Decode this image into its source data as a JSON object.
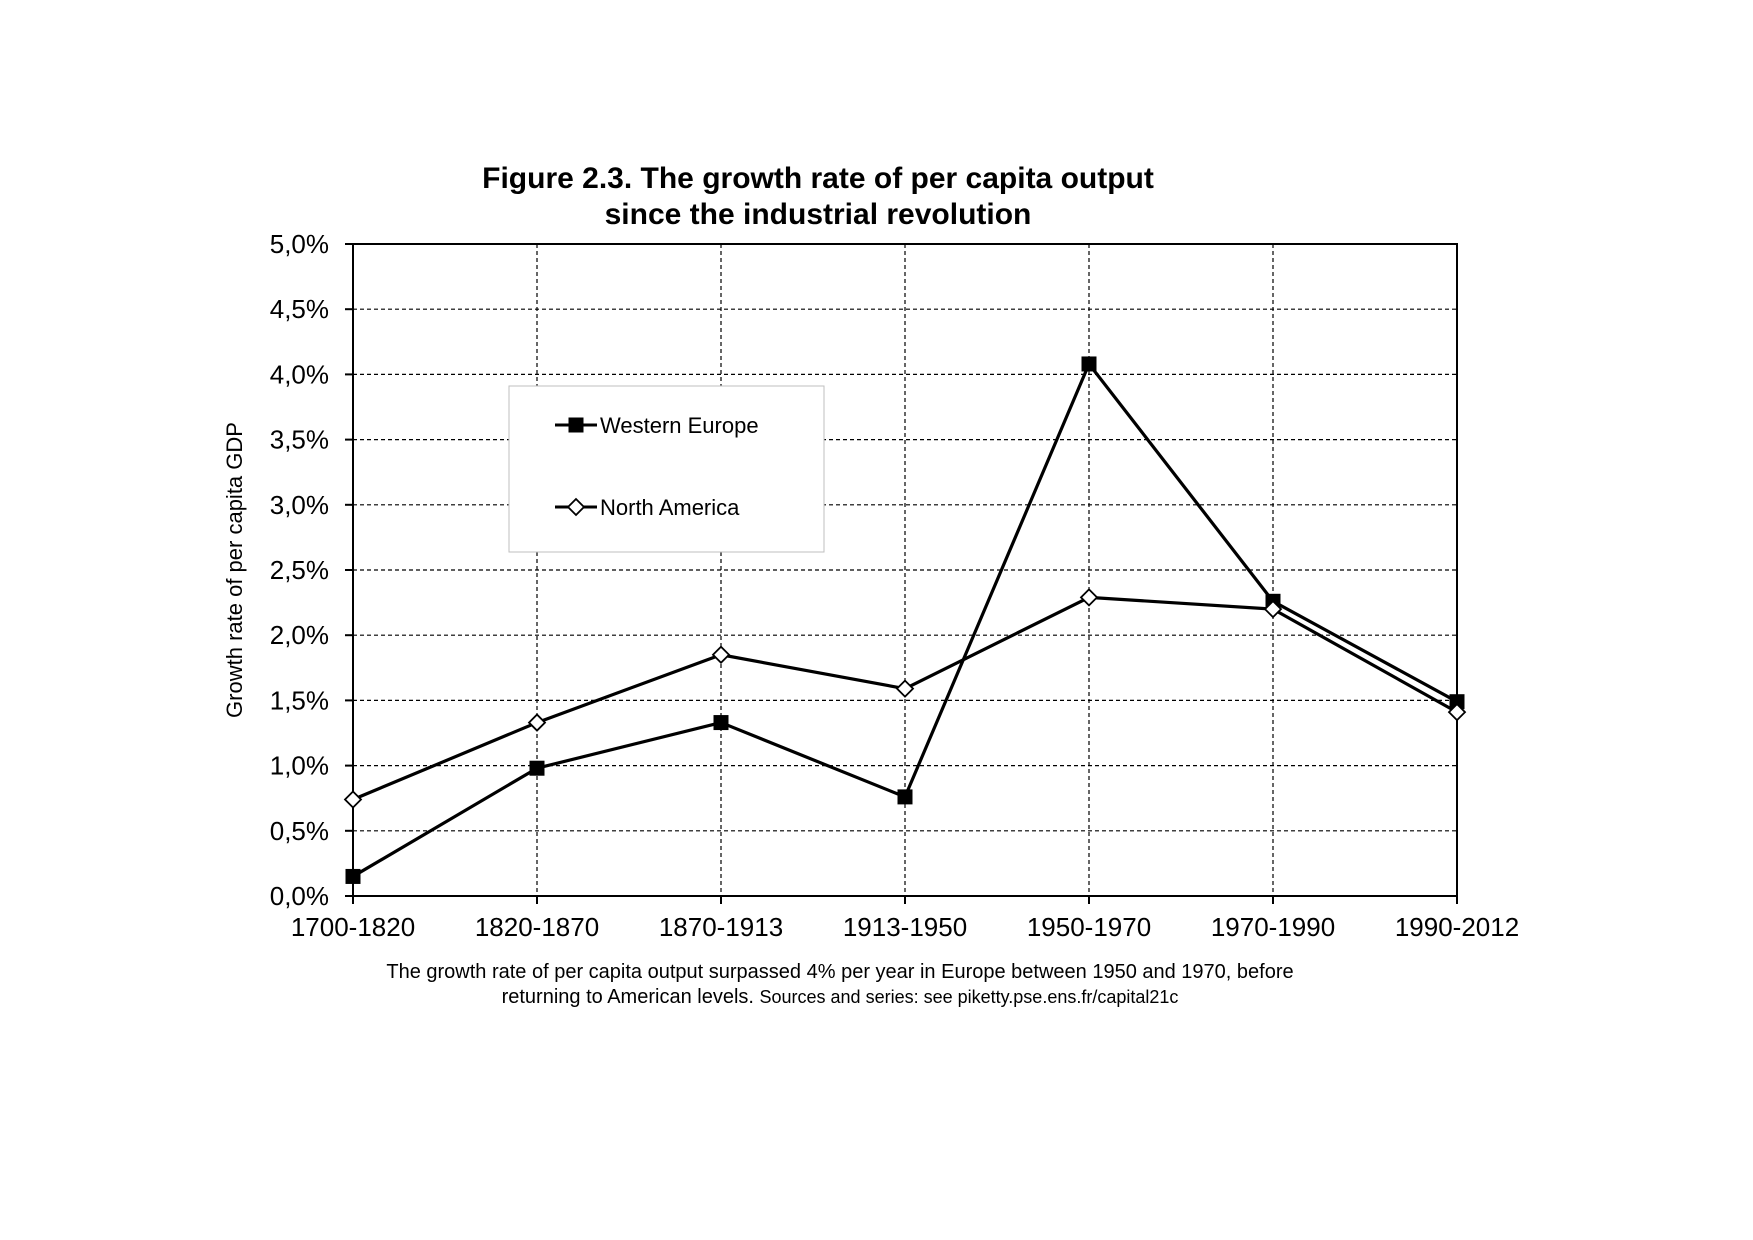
{
  "chart_data": {
    "type": "line",
    "title": [
      "Figure 2.3. The growth rate of per capita output",
      "since the industrial revolution"
    ],
    "xlabel": "",
    "ylabel": "Growth rate of per capita GDP",
    "categories": [
      "1700-1820",
      "1820-1870",
      "1870-1913",
      "1913-1950",
      "1950-1970",
      "1970-1990",
      "1990-2012"
    ],
    "ylim": [
      0,
      5
    ],
    "yticks": [
      0,
      0.5,
      1,
      1.5,
      2,
      2.5,
      3,
      3.5,
      4,
      4.5,
      5
    ],
    "ytick_labels": [
      "0,0%",
      "0,5%",
      "1,0%",
      "1,5%",
      "2,0%",
      "2,5%",
      "3,0%",
      "3,5%",
      "4,0%",
      "4,5%",
      "5,0%"
    ],
    "grid": true,
    "legend_position": "upper-left",
    "series": [
      {
        "name": "Western Europe",
        "marker": "filled-square",
        "color": "#000000",
        "values": [
          0.15,
          0.98,
          1.33,
          0.76,
          4.08,
          2.26,
          1.49
        ]
      },
      {
        "name": "North America",
        "marker": "open-diamond",
        "color": "#000000",
        "values": [
          0.74,
          1.33,
          1.85,
          1.59,
          2.29,
          2.2,
          1.41
        ]
      }
    ]
  },
  "caption": {
    "line1": "The growth rate of per capita output surpassed 4% per year in Europe between 1950 and 1970, before",
    "line2_main": "returning to American levels.",
    "line2_source": "Sources and series: see piketty.pse.ens.fr/capital21c"
  }
}
